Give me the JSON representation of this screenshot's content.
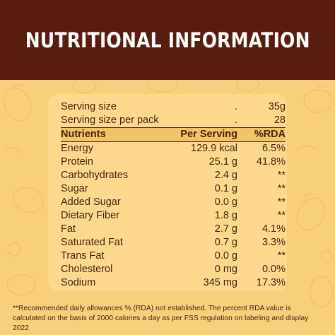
{
  "header": {
    "title": "NUTRITIONAL INFORMATION"
  },
  "serving": [
    {
      "label": "Serving  size",
      "dot": ".",
      "value": "35g"
    },
    {
      "label": "Serving size per pack",
      "dot": ".",
      "value": "28"
    }
  ],
  "columns": {
    "nutrients": "Nutrients",
    "per_serving": "Per Serving",
    "rda": "%RDA"
  },
  "rows": [
    {
      "name": "Energy",
      "amount": "129.9 kcal",
      "rda": "6.5%"
    },
    {
      "name": "Protein",
      "amount": "25.1 g",
      "rda": "41.8%"
    },
    {
      "name": "Carbohydrates",
      "amount": "2.4 g",
      "rda": "**"
    },
    {
      "name": "Sugar",
      "amount": "0.1 g",
      "rda": "**"
    },
    {
      "name": "Added Sugar",
      "amount": "0.0 g",
      "rda": "**"
    },
    {
      "name": "Dietary Fiber",
      "amount": "1.8 g",
      "rda": "**"
    },
    {
      "name": "Fat",
      "amount": "2.7 g",
      "rda": "4.1%"
    },
    {
      "name": "Saturated Fat",
      "amount": "0.7 g",
      "rda": "3.3%"
    },
    {
      "name": "Trans Fat",
      "amount": "0.0 g",
      "rda": "**"
    },
    {
      "name": "Cholesterol",
      "amount": "0 mg",
      "rda": "0.0%"
    },
    {
      "name": "Sodium",
      "amount": "345 mg",
      "rda": "17.3%"
    }
  ],
  "footnote": "**Recommended daily allowances % (RDA) not established. The percent RDA value is calculated on the basis of 2000 calories a day as per FSS regulation on labeling and display 2022",
  "colors": {
    "header_bg": "#591c11",
    "background": "#f9cf7c",
    "panel": "#fbd88e",
    "text": "#4a2410"
  }
}
